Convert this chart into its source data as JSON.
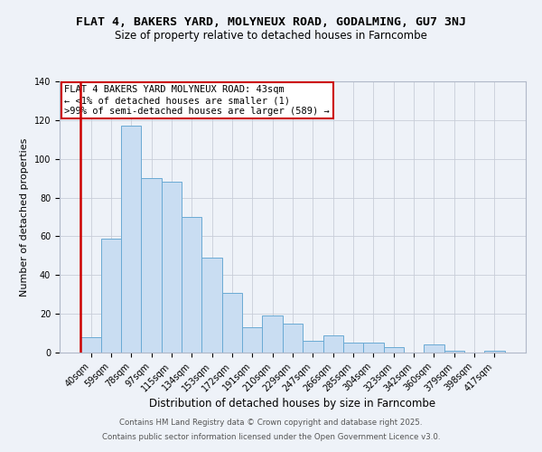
{
  "title": "FLAT 4, BAKERS YARD, MOLYNEUX ROAD, GODALMING, GU7 3NJ",
  "subtitle": "Size of property relative to detached houses in Farncombe",
  "xlabel": "Distribution of detached houses by size in Farncombe",
  "ylabel": "Number of detached properties",
  "categories": [
    "40sqm",
    "59sqm",
    "78sqm",
    "97sqm",
    "115sqm",
    "134sqm",
    "153sqm",
    "172sqm",
    "191sqm",
    "210sqm",
    "229sqm",
    "247sqm",
    "266sqm",
    "285sqm",
    "304sqm",
    "323sqm",
    "342sqm",
    "360sqm",
    "379sqm",
    "398sqm",
    "417sqm"
  ],
  "values": [
    8,
    59,
    117,
    90,
    88,
    70,
    49,
    31,
    13,
    19,
    15,
    6,
    9,
    5,
    5,
    3,
    0,
    4,
    1,
    0,
    1
  ],
  "bar_color": "#c9ddf2",
  "bar_edge_color": "#6aaad4",
  "ylim": [
    0,
    140
  ],
  "yticks": [
    0,
    20,
    40,
    60,
    80,
    100,
    120,
    140
  ],
  "annotation_title": "FLAT 4 BAKERS YARD MOLYNEUX ROAD: 43sqm",
  "annotation_line1": "← <1% of detached houses are smaller (1)",
  "annotation_line2": ">99% of semi-detached houses are larger (589) →",
  "annotation_box_facecolor": "#ffffff",
  "annotation_border_color": "#cc0000",
  "vline_color": "#cc0000",
  "background_color": "#eef2f8",
  "grid_color": "#c8cdd8",
  "spine_color": "#b0b8c8",
  "title_fontsize": 9.5,
  "subtitle_fontsize": 8.5,
  "xlabel_fontsize": 8.5,
  "ylabel_fontsize": 8,
  "tick_fontsize": 7,
  "annotation_fontsize": 7.5,
  "footer1": "Contains HM Land Registry data © Crown copyright and database right 2025.",
  "footer2": "Contains public sector information licensed under the Open Government Licence v3.0.",
  "footer_fontsize": 6.2,
  "footer_color": "#555555"
}
